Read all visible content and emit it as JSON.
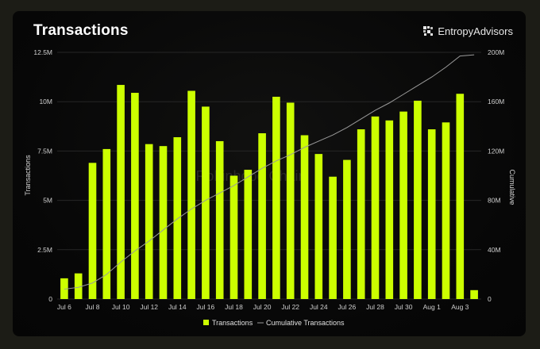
{
  "header": {
    "title": "Transactions",
    "brand": "EntropyAdvisors"
  },
  "watermark": "Robinhood Chain",
  "colors": {
    "bar": "#ccff00",
    "line": "#9a9a9a",
    "grid": "#262626"
  },
  "chart_data": {
    "type": "bar",
    "title": "Transactions",
    "ylabel": "Transactions",
    "y2label": "Cumulative",
    "ylim": [
      0,
      12500000
    ],
    "y2lim": [
      0,
      200000000
    ],
    "yticks": [
      "0",
      "2.5M",
      "5M",
      "7.5M",
      "10M",
      "12.5M"
    ],
    "y2ticks": [
      "0",
      "40M",
      "80M",
      "120M",
      "160M",
      "200M"
    ],
    "categories": [
      "Jul 6",
      "Jul 7",
      "Jul 8",
      "Jul 9",
      "Jul 10",
      "Jul 11",
      "Jul 12",
      "Jul 13",
      "Jul 14",
      "Jul 15",
      "Jul 16",
      "Jul 17",
      "Jul 18",
      "Jul 19",
      "Jul 20",
      "Jul 21",
      "Jul 22",
      "Jul 23",
      "Jul 24",
      "Jul 25",
      "Jul 26",
      "Jul 27",
      "Jul 28",
      "Jul 29",
      "Jul 30",
      "Jul 31",
      "Aug 1",
      "Aug 2",
      "Aug 3",
      "Aug 4"
    ],
    "xtick_labels": [
      "Jul 6",
      "",
      "Jul 8",
      "",
      "Jul 10",
      "",
      "Jul 12",
      "",
      "Jul 14",
      "",
      "Jul 16",
      "",
      "Jul 18",
      "",
      "Jul 20",
      "",
      "Jul 22",
      "",
      "Jul 24",
      "",
      "Jul 26",
      "",
      "Jul 28",
      "",
      "Jul 30",
      "",
      "Aug 1",
      "",
      "Aug 3",
      ""
    ],
    "series": [
      {
        "name": "Transactions",
        "kind": "bar",
        "values": [
          1050000,
          1300000,
          6900000,
          7600000,
          10850000,
          10450000,
          7850000,
          7750000,
          8200000,
          10550000,
          9750000,
          8000000,
          6250000,
          6550000,
          8400000,
          10250000,
          9950000,
          8300000,
          7350000,
          6200000,
          7050000,
          8600000,
          9250000,
          9050000,
          9500000,
          10050000,
          8600000,
          8950000,
          10400000,
          450000
        ]
      },
      {
        "name": "Cumulative Transactions",
        "kind": "line",
        "axis": "right",
        "values": [
          8000000,
          9500000,
          13000000,
          20000000,
          30000000,
          39000000,
          47000000,
          56000000,
          65000000,
          73000000,
          80000000,
          86000000,
          92000000,
          99000000,
          106000000,
          112000000,
          117000000,
          123000000,
          128000000,
          133000000,
          139000000,
          146000000,
          153000000,
          159000000,
          166000000,
          173000000,
          180000000,
          188000000,
          197000000,
          198000000
        ]
      }
    ],
    "legend": {
      "placement": "bottom-center",
      "items": [
        "Transactions",
        "Cumulative Transactions"
      ]
    },
    "grid": true
  }
}
